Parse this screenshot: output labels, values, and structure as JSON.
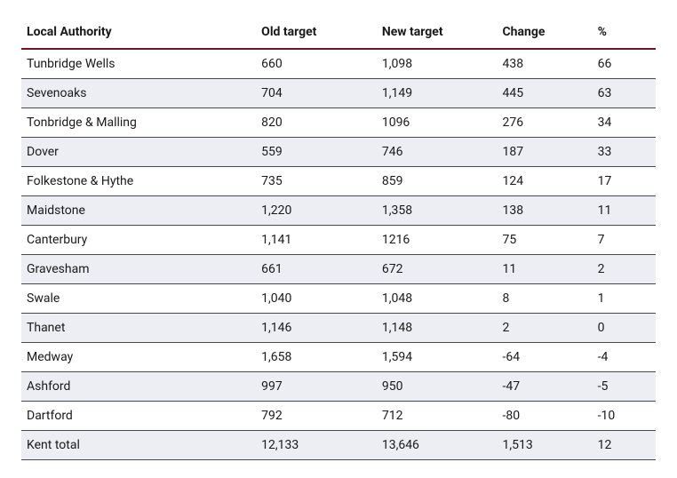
{
  "table": {
    "type": "table",
    "header_border_color": "#6b1b1b",
    "row_border_color": "#4a4a4a",
    "alt_row_bg": "#eceef4",
    "plain_row_bg": "#ffffff",
    "text_color": "#1a1a1a",
    "font_size": 14,
    "header_font_weight": 700,
    "columns": [
      {
        "key": "authority",
        "label": "Local Authority",
        "width_pct": 37
      },
      {
        "key": "old_target",
        "label": "Old target",
        "width_pct": 19
      },
      {
        "key": "new_target",
        "label": "New target",
        "width_pct": 19
      },
      {
        "key": "change",
        "label": "Change",
        "width_pct": 15
      },
      {
        "key": "pct",
        "label": "%",
        "width_pct": 10
      }
    ],
    "rows": [
      {
        "authority": "Tunbridge Wells",
        "old_target": "660",
        "new_target": "1,098",
        "change": "438",
        "pct": "66"
      },
      {
        "authority": "Sevenoaks",
        "old_target": "704",
        "new_target": "1,149",
        "change": "445",
        "pct": "63"
      },
      {
        "authority": "Tonbridge & Malling",
        "old_target": "820",
        "new_target": "1096",
        "change": "276",
        "pct": "34"
      },
      {
        "authority": "Dover",
        "old_target": "559",
        "new_target": "746",
        "change": "187",
        "pct": "33"
      },
      {
        "authority": "Folkestone & Hythe",
        "old_target": "735",
        "new_target": "859",
        "change": "124",
        "pct": "17"
      },
      {
        "authority": "Maidstone",
        "old_target": "1,220",
        "new_target": "1,358",
        "change": "138",
        "pct": "11"
      },
      {
        "authority": "Canterbury",
        "old_target": "1,141",
        "new_target": "1216",
        "change": "75",
        "pct": "7"
      },
      {
        "authority": "Gravesham",
        "old_target": "661",
        "new_target": "672",
        "change": "11",
        "pct": "2"
      },
      {
        "authority": "Swale",
        "old_target": "1,040",
        "new_target": "1,048",
        "change": "8",
        "pct": "1"
      },
      {
        "authority": "Thanet",
        "old_target": "1,146",
        "new_target": "1,148",
        "change": "2",
        "pct": "0"
      },
      {
        "authority": "Medway",
        "old_target": "1,658",
        "new_target": "1,594",
        "change": "-64",
        "pct": "-4"
      },
      {
        "authority": "Ashford",
        "old_target": "997",
        "new_target": "950",
        "change": "-47",
        "pct": "-5"
      },
      {
        "authority": "Dartford",
        "old_target": "792",
        "new_target": "712",
        "change": "-80",
        "pct": "-10"
      },
      {
        "authority": "Kent total",
        "old_target": "12,133",
        "new_target": "13,646",
        "change": "1,513",
        "pct": "12"
      }
    ]
  }
}
